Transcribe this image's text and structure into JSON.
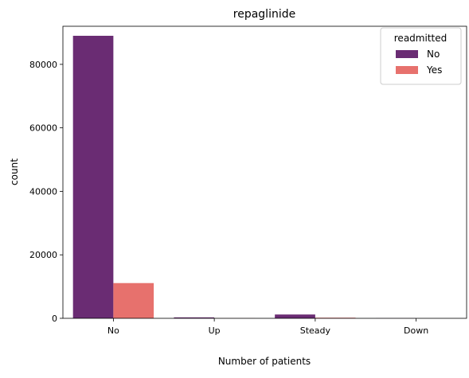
{
  "chart_data": {
    "type": "bar",
    "title": "repaglinide",
    "xlabel": "Number of patients",
    "ylabel": "count",
    "categories": [
      "No",
      "Up",
      "Steady",
      "Down"
    ],
    "ylim": [
      0,
      92000
    ],
    "yticks": [
      0,
      20000,
      40000,
      60000,
      80000
    ],
    "grid": false,
    "legend": {
      "title": "readmitted",
      "position": "top-right"
    },
    "series": [
      {
        "name": "No",
        "color": "#6a2c73",
        "values": [
          89000,
          300,
          1200,
          40
        ]
      },
      {
        "name": "Yes",
        "color": "#e7716d",
        "values": [
          11100,
          40,
          200,
          5
        ]
      }
    ]
  }
}
